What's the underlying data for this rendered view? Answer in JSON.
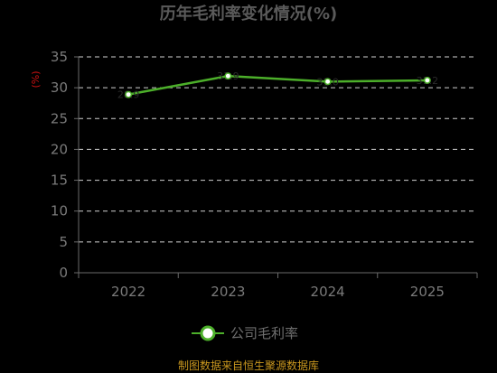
{
  "chart_data": {
    "type": "line",
    "title": "历年毛利率变化情况(%)",
    "ylabel": "(%)",
    "xlabel": "",
    "categories": [
      "2022",
      "2023",
      "2024",
      "2025"
    ],
    "series": [
      {
        "name": "公司毛利率",
        "values": [
          28.9,
          31.9,
          31.0,
          31.2
        ],
        "color": "#4caf2a"
      }
    ],
    "ylim": [
      0,
      35
    ],
    "yticks": [
      0,
      5,
      10,
      15,
      20,
      25,
      30,
      35
    ],
    "grid": true,
    "legend_position": "bottom"
  },
  "source": "制图数据来自恒生聚源数据库",
  "colors": {
    "background": "#000000",
    "line": "#4caf2a",
    "marker_fill": "#ffffff",
    "source_text": "#c8961e",
    "ylabel_text": "#cc1111"
  }
}
